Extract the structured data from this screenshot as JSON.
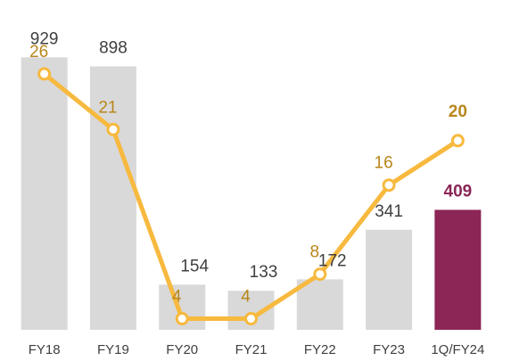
{
  "chart_data": {
    "type": "combo",
    "categories": [
      "FY18",
      "FY19",
      "FY20",
      "FY21",
      "FY22",
      "FY23",
      "1Q/FY24"
    ],
    "ylim": [
      0,
      1100
    ],
    "y2lim": [
      3,
      32
    ],
    "grid": false,
    "highlight_index": 6,
    "series": [
      {
        "type": "bar",
        "values": [
          929,
          898,
          154,
          133,
          172,
          341,
          409
        ],
        "colors": [
          "#d9d9d9",
          "#d9d9d9",
          "#d9d9d9",
          "#d9d9d9",
          "#d9d9d9",
          "#d9d9d9",
          "#8b2656"
        ],
        "label_color": "#404040",
        "highlight_label_color": "#8b2656"
      },
      {
        "type": "line",
        "axis": "y2",
        "values": [
          26,
          21,
          4,
          4,
          8,
          16,
          20
        ],
        "color": "#f7b93e",
        "label_color": "#b8861b",
        "highlight_label_color": "#b8861b"
      }
    ]
  }
}
